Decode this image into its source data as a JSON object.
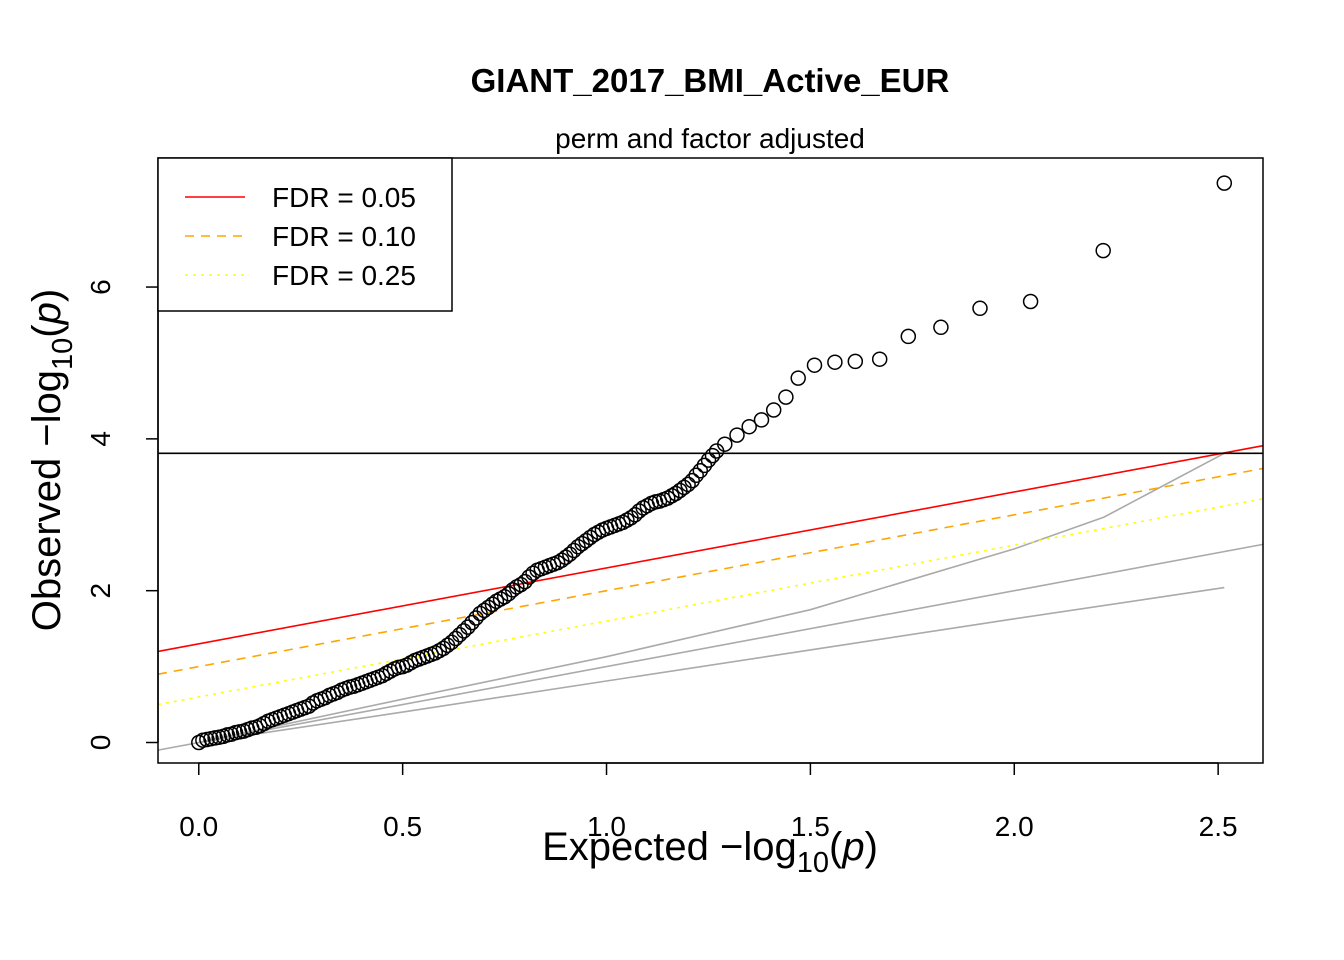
{
  "chart_data": {
    "type": "scatter",
    "title": "GIANT_2017_BMI_Active_EUR",
    "subtitle": "perm and factor adjusted",
    "xlabel": {
      "prefix": "Expected  −log",
      "sub": "10",
      "var_open": "(",
      "var": "p",
      "var_close": ")"
    },
    "ylabel": {
      "prefix": "Observed  −log",
      "sub": "10",
      "var_open": "(",
      "var": "p",
      "var_close": ")"
    },
    "xlim": [
      -0.1,
      2.61
    ],
    "ylim": [
      -0.27,
      7.7
    ],
    "xticks": [
      0,
      0.5,
      1,
      1.5,
      2,
      2.5
    ],
    "xtick_labels": [
      "0.0",
      "0.5",
      "1.0",
      "1.5",
      "2.0",
      "2.5"
    ],
    "yticks": [
      0,
      2,
      4,
      6
    ],
    "ytick_labels": [
      "0",
      "2",
      "4",
      "6"
    ],
    "threshold_y": 3.81,
    "fdr_lines": [
      {
        "label": "FDR = 0.05",
        "color": "#ff0000",
        "dash": "none",
        "intercept": 1.3,
        "slope": 1.0
      },
      {
        "label": "FDR = 0.10",
        "color": "#ffa500",
        "dash": "9,7",
        "intercept": 1.0,
        "slope": 1.0
      },
      {
        "label": "FDR = 0.25",
        "color": "#ffff00",
        "dash": "3,5",
        "intercept": 0.6,
        "slope": 1.0
      }
    ],
    "reference_lines": [
      {
        "color": "#aaaaaa",
        "x": [
          -0.1,
          2.61
        ],
        "y": [
          -0.1,
          2.61
        ]
      },
      {
        "color": "#aaaaaa",
        "x": [
          0,
          0.5,
          1.0,
          1.5,
          2.0,
          2.22,
          2.515
        ],
        "y": [
          0,
          0.57,
          1.13,
          1.75,
          2.55,
          2.97,
          3.81
        ]
      },
      {
        "color": "#aaaaaa",
        "x": [
          0,
          0.5,
          1.0,
          1.5,
          2.0,
          2.515
        ],
        "y": [
          0,
          0.4,
          0.81,
          1.22,
          1.63,
          2.04
        ]
      }
    ],
    "points": {
      "x": [
        0.0,
        0.01,
        0.02,
        0.03,
        0.04,
        0.05,
        0.06,
        0.07,
        0.08,
        0.09,
        0.1,
        0.11,
        0.12,
        0.13,
        0.14,
        0.15,
        0.16,
        0.17,
        0.18,
        0.19,
        0.2,
        0.21,
        0.22,
        0.23,
        0.24,
        0.25,
        0.26,
        0.27,
        0.28,
        0.29,
        0.3,
        0.31,
        0.32,
        0.33,
        0.34,
        0.35,
        0.36,
        0.37,
        0.38,
        0.39,
        0.4,
        0.41,
        0.42,
        0.43,
        0.44,
        0.45,
        0.46,
        0.47,
        0.48,
        0.49,
        0.5,
        0.51,
        0.52,
        0.53,
        0.54,
        0.55,
        0.56,
        0.57,
        0.58,
        0.59,
        0.6,
        0.61,
        0.62,
        0.63,
        0.64,
        0.65,
        0.66,
        0.67,
        0.68,
        0.69,
        0.7,
        0.71,
        0.72,
        0.73,
        0.74,
        0.75,
        0.76,
        0.77,
        0.78,
        0.79,
        0.8,
        0.81,
        0.82,
        0.83,
        0.84,
        0.85,
        0.86,
        0.87,
        0.88,
        0.89,
        0.9,
        0.91,
        0.92,
        0.93,
        0.94,
        0.95,
        0.96,
        0.97,
        0.98,
        0.99,
        1.0,
        1.01,
        1.02,
        1.03,
        1.04,
        1.05,
        1.06,
        1.07,
        1.08,
        1.09,
        1.1,
        1.11,
        1.12,
        1.13,
        1.14,
        1.15,
        1.16,
        1.17,
        1.18,
        1.19,
        1.2,
        1.21,
        1.22,
        1.23,
        1.24,
        1.25,
        1.26,
        1.27,
        1.29,
        1.32,
        1.35,
        1.38,
        1.41,
        1.44,
        1.47,
        1.51,
        1.56,
        1.61,
        1.67,
        1.74,
        1.82,
        1.916,
        2.04,
        2.218,
        2.515
      ],
      "y": [
        0.0,
        0.03,
        0.04,
        0.05,
        0.06,
        0.07,
        0.08,
        0.1,
        0.11,
        0.13,
        0.14,
        0.15,
        0.17,
        0.19,
        0.2,
        0.22,
        0.25,
        0.28,
        0.3,
        0.32,
        0.34,
        0.36,
        0.38,
        0.4,
        0.42,
        0.44,
        0.46,
        0.48,
        0.52,
        0.55,
        0.57,
        0.59,
        0.62,
        0.64,
        0.66,
        0.69,
        0.71,
        0.73,
        0.74,
        0.76,
        0.78,
        0.8,
        0.82,
        0.84,
        0.86,
        0.88,
        0.91,
        0.94,
        0.97,
        0.99,
        1.0,
        1.02,
        1.05,
        1.08,
        1.1,
        1.12,
        1.14,
        1.16,
        1.18,
        1.21,
        1.24,
        1.28,
        1.32,
        1.37,
        1.42,
        1.47,
        1.52,
        1.58,
        1.64,
        1.7,
        1.74,
        1.78,
        1.82,
        1.86,
        1.89,
        1.92,
        1.96,
        2.01,
        2.05,
        2.08,
        2.12,
        2.18,
        2.23,
        2.27,
        2.29,
        2.31,
        2.33,
        2.35,
        2.37,
        2.4,
        2.44,
        2.48,
        2.53,
        2.58,
        2.62,
        2.66,
        2.7,
        2.74,
        2.77,
        2.8,
        2.82,
        2.84,
        2.86,
        2.88,
        2.9,
        2.93,
        2.96,
        3.0,
        3.05,
        3.09,
        3.12,
        3.15,
        3.17,
        3.18,
        3.2,
        3.22,
        3.25,
        3.28,
        3.32,
        3.36,
        3.4,
        3.45,
        3.52,
        3.58,
        3.65,
        3.72,
        3.78,
        3.84,
        3.93,
        4.05,
        4.16,
        4.25,
        4.38,
        4.55,
        4.8,
        4.97,
        5.01,
        5.02,
        5.05,
        5.35,
        5.47,
        5.72,
        5.81,
        6.48,
        7.37
      ]
    }
  }
}
